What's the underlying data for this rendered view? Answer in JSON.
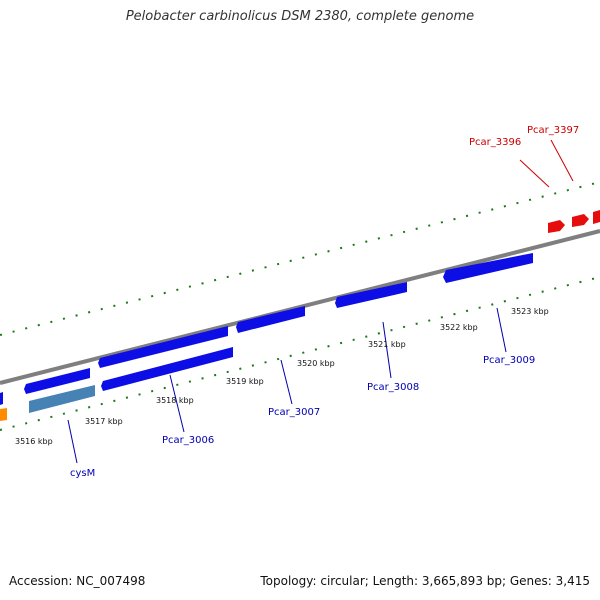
{
  "title": "Pelobacter carbinolicus DSM 2380, complete genome",
  "footer": {
    "accession": "Accession: NC_007498",
    "summary": "Topology: circular; Length: 3,665,893 bp; Genes: 3,415"
  },
  "colors": {
    "backbone": "#7f7f7f",
    "tick": "#1a7a1a",
    "forward_gene": "#0d0de6",
    "reverse_gene_red": "#e60d0d",
    "cysM_gene": "#4682b4",
    "orange_gene": "#ff8c00",
    "label_blue": "#0000b0",
    "label_red": "#cc0000"
  },
  "ticks": [
    {
      "text": "3516 kbp"
    },
    {
      "text": "3517 kbp"
    },
    {
      "text": "3518 kbp"
    },
    {
      "text": "3519 kbp"
    },
    {
      "text": "3520 kbp"
    },
    {
      "text": "3521 kbp"
    },
    {
      "text": "3522 kbp"
    },
    {
      "text": "3523 kbp"
    }
  ],
  "genes": [
    {
      "text": "cysM",
      "strand": "forward"
    },
    {
      "text": "Pcar_3006",
      "strand": "forward"
    },
    {
      "text": "Pcar_3007",
      "strand": "forward"
    },
    {
      "text": "Pcar_3008",
      "strand": "forward"
    },
    {
      "text": "Pcar_3009",
      "strand": "forward"
    },
    {
      "text": "Pcar_3396",
      "strand": "reverse"
    },
    {
      "text": "Pcar_3397",
      "strand": "reverse"
    }
  ]
}
